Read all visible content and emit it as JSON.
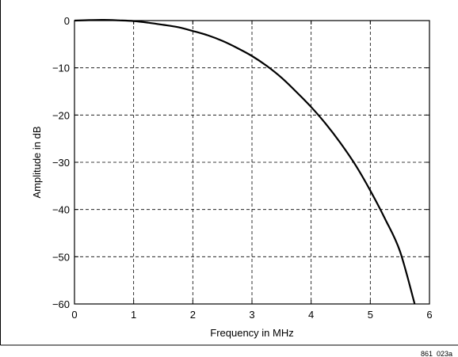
{
  "figure_id": "861_023a",
  "chart_data": {
    "type": "line",
    "xlabel": "Frequency in MHz",
    "ylabel": "Amplitude in dB",
    "xlim": [
      0,
      6
    ],
    "ylim": [
      -60,
      0
    ],
    "xticks": [
      "0",
      "1",
      "2",
      "3",
      "4",
      "5",
      "6"
    ],
    "yticks": [
      "0",
      "−10",
      "−20",
      "−30",
      "−40",
      "−50",
      "−60"
    ],
    "grid": true,
    "legend": "none",
    "series": [
      {
        "color": "#000000",
        "x": [
          0,
          0.25,
          0.5,
          0.75,
          1.0,
          1.25,
          1.5,
          1.75,
          2.0,
          2.25,
          2.5,
          2.75,
          3.0,
          3.25,
          3.5,
          3.75,
          4.0,
          4.25,
          4.5,
          4.75,
          5.0,
          5.25,
          5.5,
          5.75
        ],
        "y": [
          0,
          0.1,
          0.15,
          0.05,
          -0.1,
          -0.45,
          -0.9,
          -1.4,
          -2.2,
          -3.1,
          -4.3,
          -5.8,
          -7.5,
          -9.6,
          -12.1,
          -15.1,
          -18.3,
          -21.9,
          -26.0,
          -30.6,
          -36.0,
          -42.0,
          -48.8,
          -60.0
        ]
      }
    ]
  }
}
